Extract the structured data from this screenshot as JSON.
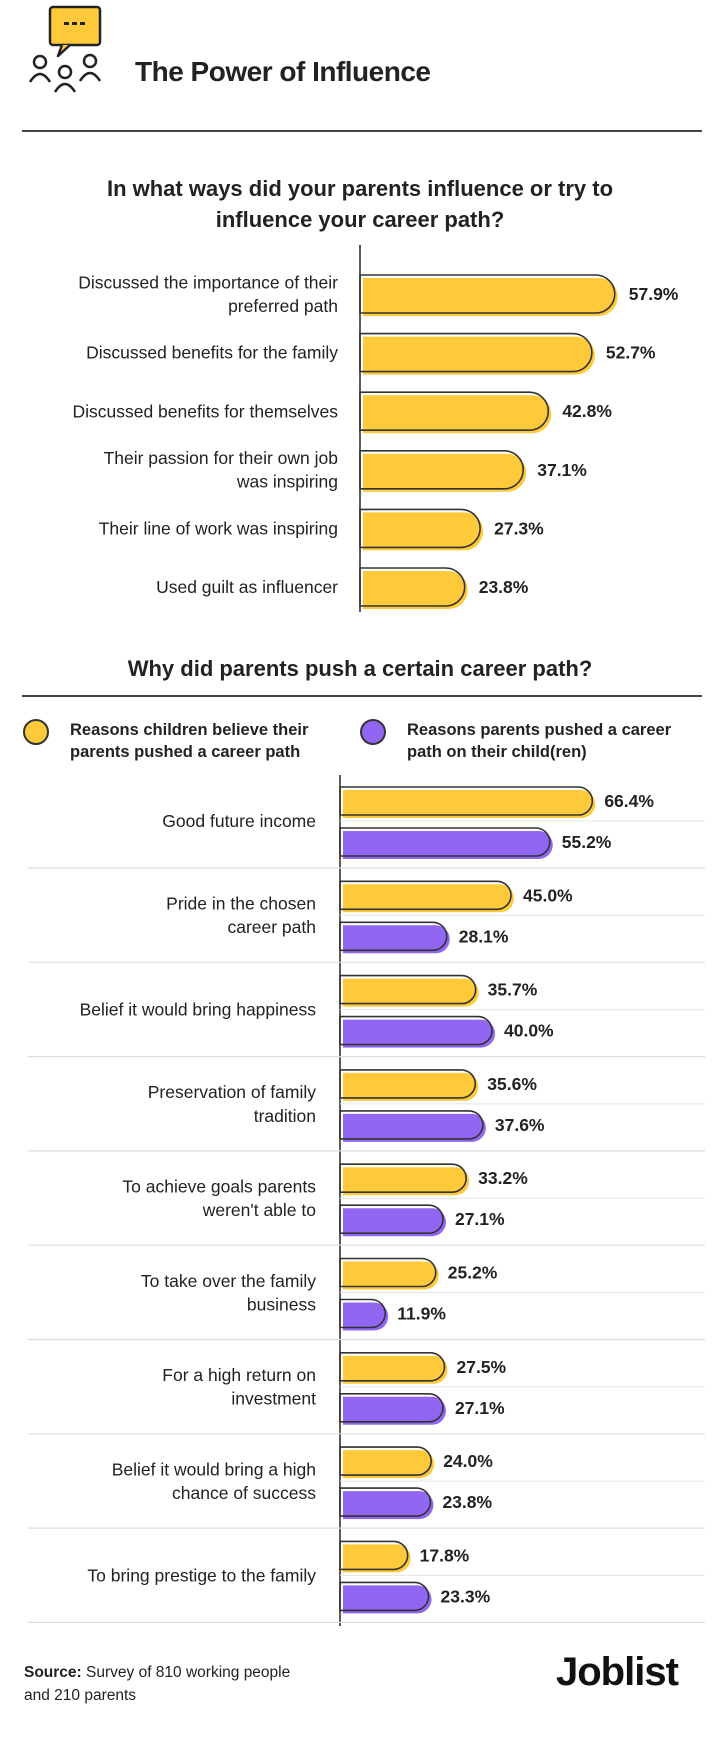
{
  "header": {
    "title": "The Power of Influence",
    "icon": "chat-bubble-people-icon"
  },
  "colors": {
    "yellow": "#FFCA3A",
    "purple": "#9066F2",
    "outline": "#333333"
  },
  "chart_data": [
    {
      "type": "bar",
      "orientation": "horizontal",
      "title": "In what ways did your parents influence or try to influence your career path?",
      "categories": [
        [
          "Discussed the importance of their",
          "preferred path"
        ],
        [
          "Discussed benefits for the family"
        ],
        [
          "Discussed benefits for themselves"
        ],
        [
          "Their passion for their own job",
          "was inspiring"
        ],
        [
          "Their line of work was inspiring"
        ],
        [
          "Used guilt as influencer"
        ]
      ],
      "values": [
        57.9,
        52.7,
        42.8,
        37.1,
        27.3,
        23.8
      ],
      "value_labels": [
        "57.9%",
        "52.7%",
        "42.8%",
        "37.1%",
        "27.3%",
        "23.8%"
      ],
      "unit": "%"
    },
    {
      "type": "bar",
      "orientation": "horizontal",
      "title": "Why did parents push a certain career path?",
      "legend": "top",
      "categories": [
        [
          "Good future income"
        ],
        [
          "Pride in the chosen",
          "career path"
        ],
        [
          "Belief it would bring happiness"
        ],
        [
          "Preservation of family",
          "tradition"
        ],
        [
          "To achieve goals parents",
          "weren't able to"
        ],
        [
          "To take over the family",
          "business"
        ],
        [
          "For a high return on",
          "investment"
        ],
        [
          "Belief it would bring a high",
          "chance of success"
        ],
        [
          "To bring prestige to the family"
        ]
      ],
      "series": [
        {
          "name": "Reasons children believe their parents pushed a career path",
          "legend_lines": [
            "Reasons children believe their",
            "parents pushed a career path"
          ],
          "values": [
            66.4,
            45.0,
            35.7,
            35.6,
            33.2,
            25.2,
            27.5,
            24.0,
            17.8
          ],
          "value_labels": [
            "66.4%",
            "45.0%",
            "35.7%",
            "35.6%",
            "33.2%",
            "25.2%",
            "27.5%",
            "24.0%",
            "17.8%"
          ]
        },
        {
          "name": "Reasons parents pushed a career path on their child(ren)",
          "legend_lines": [
            "Reasons parents pushed a career",
            "path on their child(ren)"
          ],
          "values": [
            55.2,
            28.1,
            40.0,
            37.6,
            27.1,
            11.9,
            27.1,
            23.8,
            23.3
          ],
          "value_labels": [
            "55.2%",
            "28.1%",
            "40.0%",
            "37.6%",
            "27.1%",
            "11.9%",
            "27.1%",
            "23.8%",
            "23.3%"
          ]
        }
      ],
      "unit": "%"
    }
  ],
  "footer": {
    "source_label": "Source:",
    "source_text": " Survey of 810 working people",
    "source_text_2": "and 210 parents",
    "logo": "Joblist"
  }
}
